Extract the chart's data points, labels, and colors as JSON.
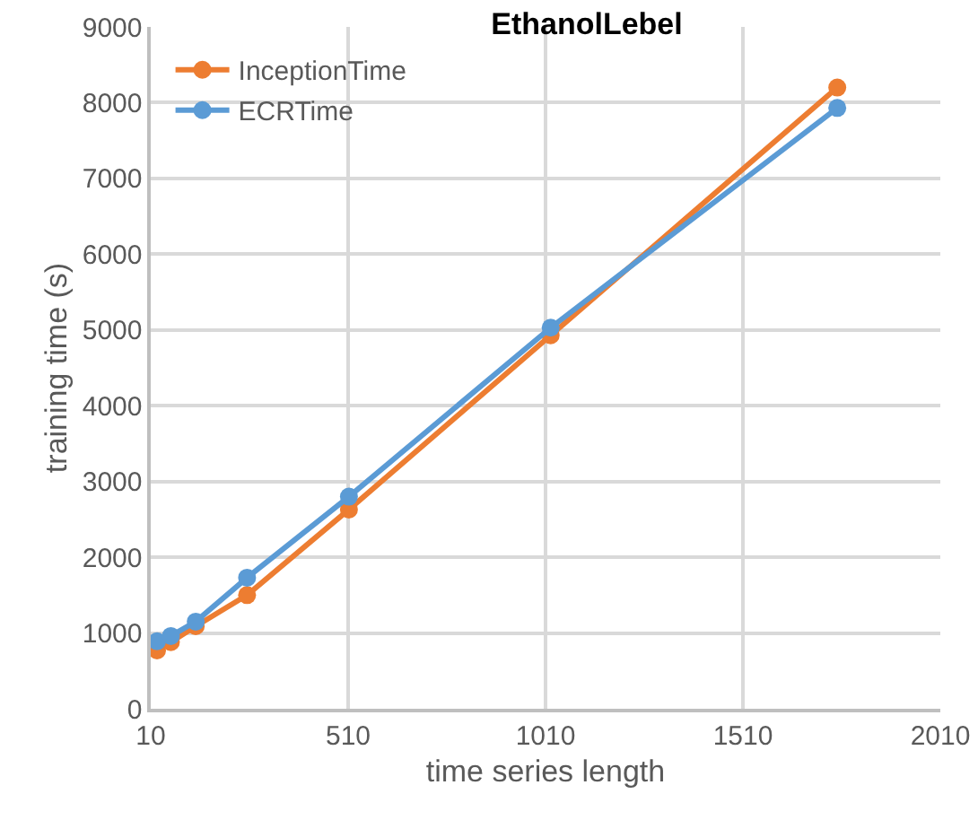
{
  "chart_data": {
    "type": "line",
    "title": "EthanolLebel",
    "xlabel": "time series length",
    "ylabel": "training time (s)",
    "x": [
      26,
      61,
      124,
      254,
      512,
      1023,
      1749
    ],
    "series": [
      {
        "name": "InceptionTime",
        "color": "#ed7d31",
        "values": [
          770,
          880,
          1090,
          1500,
          2630,
          4930,
          8200
        ]
      },
      {
        "name": "ECRTime",
        "color": "#5b9bd5",
        "values": [
          890,
          960,
          1150,
          1730,
          2800,
          5030,
          7930
        ]
      }
    ],
    "xlim": [
      10,
      2010
    ],
    "xticks": [
      10,
      510,
      1010,
      1510,
      2010
    ],
    "ylim": [
      0,
      9000
    ],
    "yticks": [
      0,
      1000,
      2000,
      3000,
      4000,
      5000,
      6000,
      7000,
      8000,
      9000
    ],
    "grid": true,
    "legend": "top left",
    "marker": "circle",
    "line_style": "solid"
  }
}
